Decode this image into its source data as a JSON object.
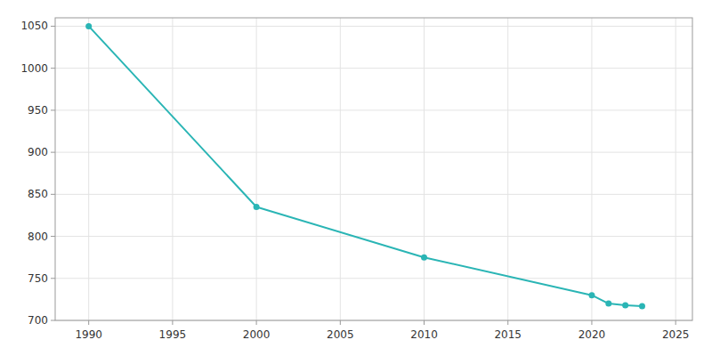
{
  "chart_data": {
    "type": "line",
    "x": [
      1990,
      2000,
      2010,
      2020,
      2021,
      2022,
      2023
    ],
    "values": [
      1050,
      835,
      775,
      730,
      720,
      718,
      717
    ],
    "color": "#2ab5b5",
    "marker": "circle",
    "xlim": [
      1988,
      2026
    ],
    "ylim": [
      700,
      1060
    ],
    "xticks": [
      1990,
      1995,
      2000,
      2005,
      2010,
      2015,
      2020,
      2025
    ],
    "yticks": [
      700,
      750,
      800,
      850,
      900,
      950,
      1000,
      1050
    ],
    "grid": true
  }
}
